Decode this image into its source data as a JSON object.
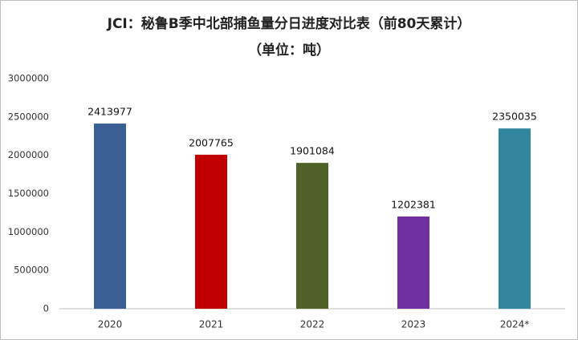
{
  "chart_data": {
    "type": "bar",
    "title": "JCI：秘鲁B季中北部捕鱼量分日进度对比表（前80天累计）",
    "subtitle": "（单位：吨）",
    "categories": [
      "2020",
      "2021",
      "2022",
      "2023",
      "2024*"
    ],
    "values": [
      2413977,
      2007765,
      1901084,
      1202381,
      2350035
    ],
    "colors": [
      "#3a5f94",
      "#c00000",
      "#4f6228",
      "#7030a0",
      "#31859c"
    ],
    "ylim": [
      0,
      3000000
    ],
    "yticks": [
      0,
      500000,
      1000000,
      1500000,
      2000000,
      2500000,
      3000000
    ],
    "grid": false
  }
}
